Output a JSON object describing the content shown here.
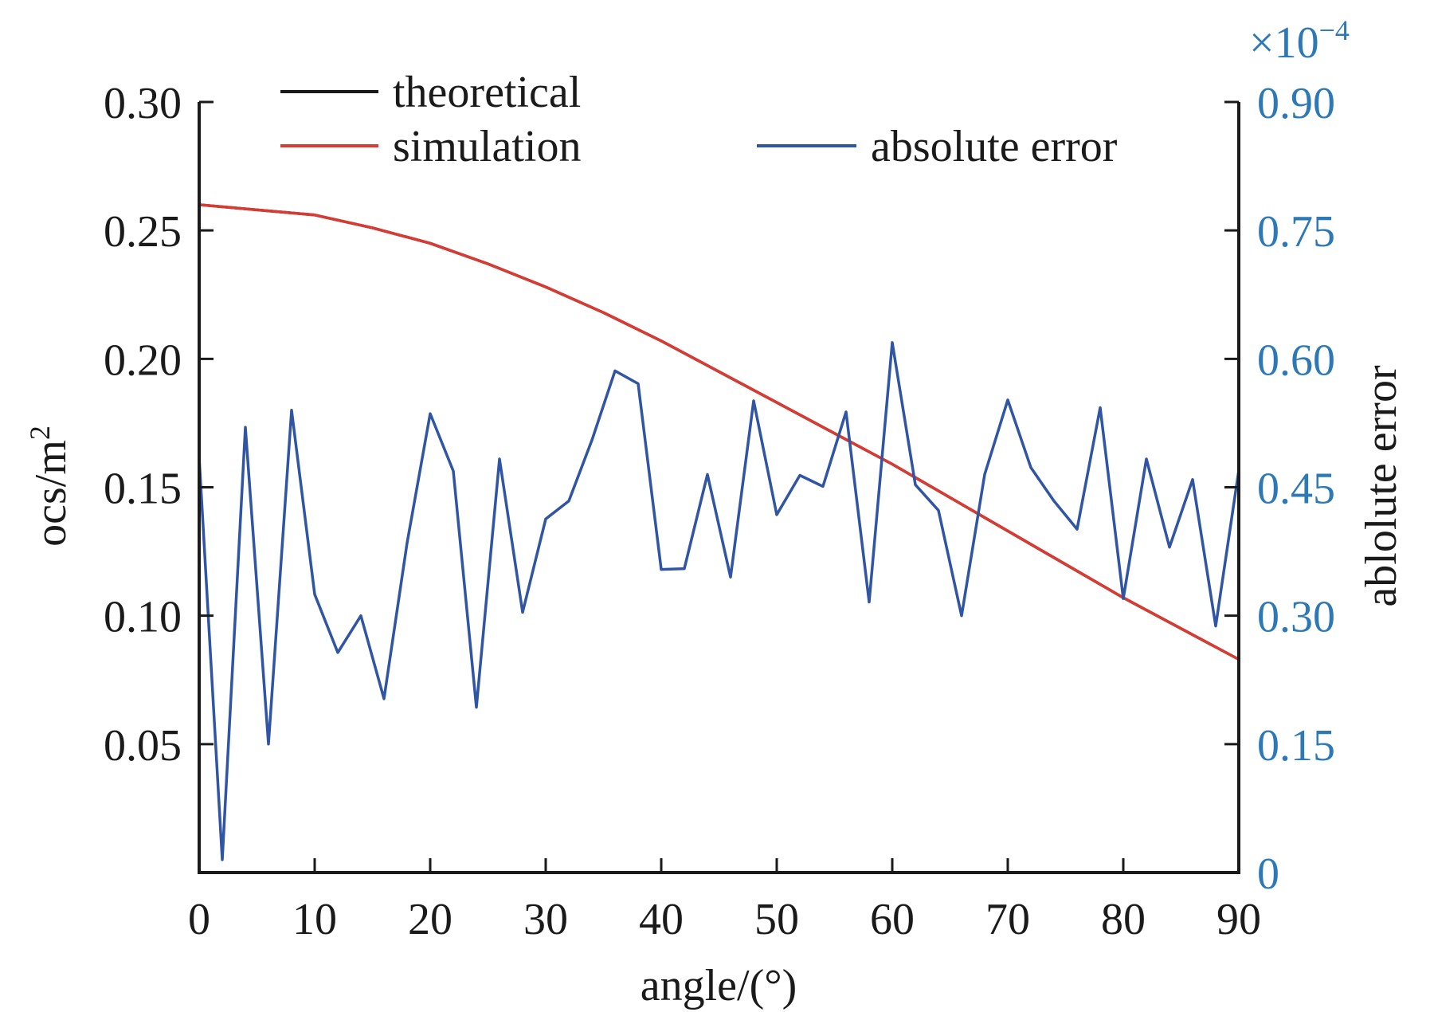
{
  "chart_data": {
    "type": "line",
    "xlabel": "angle/(°)",
    "ylabel_left": "ocs/m",
    "ylabel_left_sup": "2",
    "ylabel_right": "ablolute error",
    "right_axis_multiplier": "×10",
    "right_axis_multiplier_exp": "−4",
    "xlim": [
      0,
      90
    ],
    "ylim_left": [
      0,
      0.3
    ],
    "ylim_right": [
      0,
      0.9
    ],
    "x_ticks": [
      "0",
      "10",
      "20",
      "30",
      "40",
      "50",
      "60",
      "70",
      "80",
      "90"
    ],
    "y_ticks_left": [
      "0.05",
      "0.10",
      "0.15",
      "0.20",
      "0.25",
      "0.30"
    ],
    "y_ticks_right": [
      "0",
      "0.15",
      "0.30",
      "0.45",
      "0.60",
      "0.75",
      "0.90"
    ],
    "grid": false,
    "legend_position": "top",
    "colors": {
      "theoretical": "#1a1a1a",
      "simulation": "#d93a32",
      "absolute_error": "#2f55a4",
      "right_axis": "#2d79b5",
      "axes": "#1a1a1a"
    },
    "series": [
      {
        "name": "theoretical",
        "axis": "left",
        "x": [
          0,
          5,
          10,
          15,
          20,
          25,
          30,
          35,
          40,
          45,
          50,
          55,
          60,
          65,
          70,
          75,
          80,
          85,
          90
        ],
        "values": [
          0.26,
          0.258,
          0.256,
          0.251,
          0.245,
          0.237,
          0.228,
          0.218,
          0.207,
          0.195,
          0.183,
          0.171,
          0.159,
          0.146,
          0.133,
          0.12,
          0.107,
          0.095,
          0.083
        ]
      },
      {
        "name": "simulation",
        "axis": "left",
        "x": [
          0,
          5,
          10,
          15,
          20,
          25,
          30,
          35,
          40,
          45,
          50,
          55,
          60,
          65,
          70,
          75,
          80,
          85,
          90
        ],
        "values": [
          0.26,
          0.258,
          0.256,
          0.251,
          0.245,
          0.237,
          0.228,
          0.218,
          0.207,
          0.195,
          0.183,
          0.171,
          0.159,
          0.146,
          0.133,
          0.12,
          0.107,
          0.095,
          0.083
        ]
      },
      {
        "name": "absolute error",
        "axis": "right",
        "x": [
          0,
          2,
          4,
          6,
          8,
          10,
          12,
          14,
          16,
          18,
          20,
          22,
          24,
          26,
          28,
          30,
          32,
          34,
          36,
          38,
          40,
          42,
          44,
          46,
          48,
          50,
          52,
          54,
          56,
          58,
          60,
          62,
          64,
          66,
          68,
          70,
          72,
          74,
          76,
          78,
          80,
          82,
          84,
          86,
          88,
          90
        ],
        "values": [
          0.485,
          0.015,
          0.52,
          0.15,
          0.54,
          0.325,
          0.257,
          0.3,
          0.203,
          0.385,
          0.536,
          0.469,
          0.193,
          0.483,
          0.304,
          0.413,
          0.434,
          0.505,
          0.586,
          0.571,
          0.354,
          0.355,
          0.465,
          0.345,
          0.551,
          0.418,
          0.464,
          0.451,
          0.538,
          0.316,
          0.619,
          0.453,
          0.423,
          0.3,
          0.465,
          0.552,
          0.473,
          0.434,
          0.401,
          0.543,
          0.32,
          0.483,
          0.38,
          0.459,
          0.288,
          0.47
        ]
      }
    ],
    "legend": {
      "theoretical": "theoretical",
      "simulation": "simulation",
      "absolute_error": "absolute error"
    }
  }
}
